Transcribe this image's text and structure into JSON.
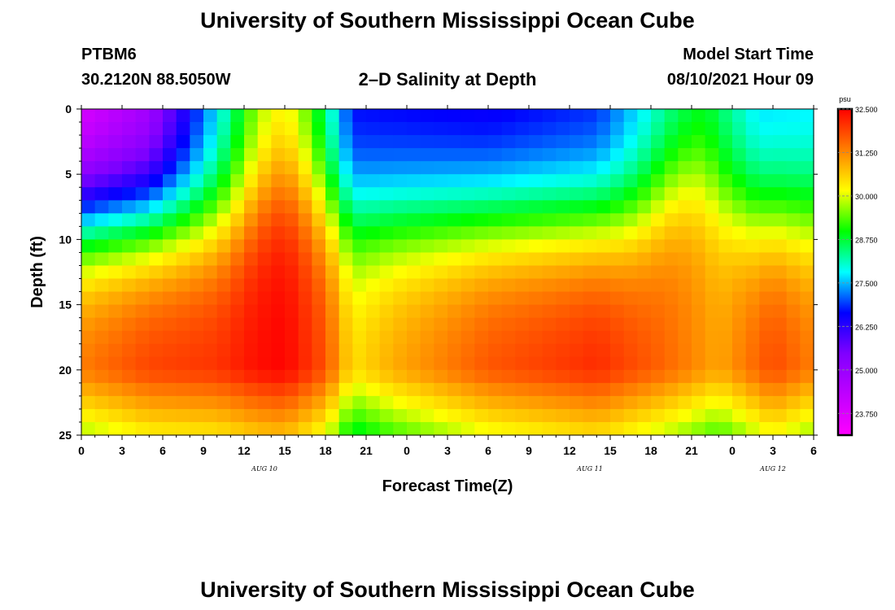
{
  "header": {
    "title": "University of Southern Mississippi Ocean Cube",
    "station": "PTBM6",
    "coords": "30.2120N  88.5050W",
    "subtitle": "2–D Salinity at Depth",
    "start_label": "Model Start Time",
    "start_value": "08/10/2021 Hour 09",
    "footer_title": "University of Southern Mississippi Ocean Cube"
  },
  "chart_data": {
    "type": "heatmap",
    "title": "2–D Salinity at Depth",
    "xlabel": "Forecast Time(Z)",
    "ylabel": "Depth (ft)",
    "x_ticks": [
      "0",
      "3",
      "6",
      "9",
      "12",
      "15",
      "18",
      "21",
      "0",
      "3",
      "6",
      "9",
      "12",
      "15",
      "18",
      "21",
      "0",
      "3",
      "6"
    ],
    "x_range_hours": [
      0,
      54
    ],
    "date_labels": [
      {
        "text": "AUG 10",
        "hour": 13.5
      },
      {
        "text": "AUG 11",
        "hour": 37.5
      },
      {
        "text": "AUG 12",
        "hour": 51
      }
    ],
    "y_ticks": [
      "0",
      "5",
      "10",
      "15",
      "20",
      "25"
    ],
    "y_range_ft": [
      0,
      25
    ],
    "colorbar": {
      "unit": "psu",
      "min": 23.125,
      "max": 32.5,
      "tick_values": [
        "32.500",
        "31.250",
        "30.000",
        "28.750",
        "27.500",
        "26.250",
        "25.000",
        "23.750"
      ],
      "colors": [
        "#ff00ff",
        "#bf00ff",
        "#8000ff",
        "#0000ff",
        "#00ffff",
        "#00ff00",
        "#ffff00",
        "#ff8000",
        "#ff0000"
      ]
    },
    "grid_summary": {
      "description": "salinity (psu) sampled every 1 hour x 1 ft; values estimated from colors",
      "surface_psu_at_hours": [
        [
          0,
          23.5
        ],
        [
          5,
          24.5
        ],
        [
          10,
          27.5
        ],
        [
          13,
          29.5
        ],
        [
          15,
          30.0
        ],
        [
          17,
          29.0
        ],
        [
          20,
          26.5
        ],
        [
          30,
          26.3
        ],
        [
          38,
          26.6
        ],
        [
          43,
          28.0
        ],
        [
          46,
          28.6
        ],
        [
          50,
          27.5
        ],
        [
          54,
          27.6
        ]
      ],
      "depth20_psu_at_hours": [
        [
          0,
          31.5
        ],
        [
          5,
          32.0
        ],
        [
          10,
          32.1
        ],
        [
          13,
          32.4
        ],
        [
          15,
          32.5
        ],
        [
          18,
          31.8
        ],
        [
          20,
          30.5
        ],
        [
          23,
          31.0
        ],
        [
          30,
          31.8
        ],
        [
          38,
          32.2
        ],
        [
          43,
          31.6
        ],
        [
          47,
          31.0
        ],
        [
          51,
          31.9
        ],
        [
          54,
          31.4
        ]
      ]
    }
  }
}
